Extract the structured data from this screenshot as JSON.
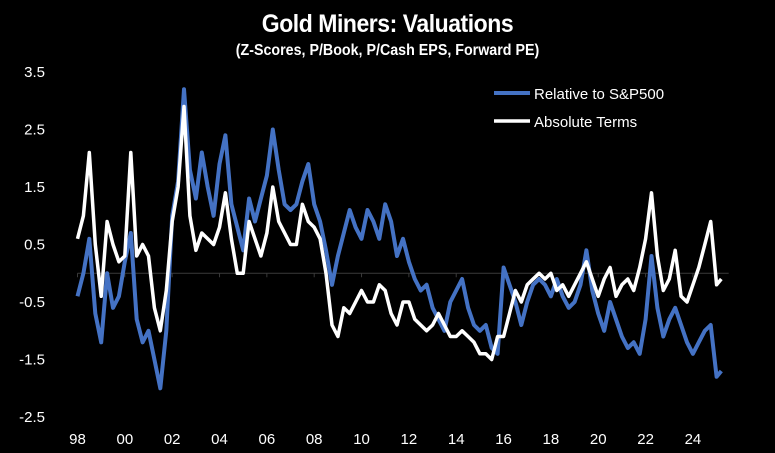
{
  "chart_data": {
    "type": "line",
    "title": "Gold Miners: Valuations",
    "subtitle": "(Z-Scores, P/Book, P/Cash EPS, Forward PE)",
    "xlabel": "",
    "ylabel": "",
    "ylim": [
      -2.5,
      3.5
    ],
    "xlim": [
      1998,
      2025.3
    ],
    "yticks": [
      "3.5",
      "2.5",
      "1.5",
      "0.5",
      "-0.5",
      "-1.5",
      "-2.5"
    ],
    "ytick_values": [
      3.5,
      2.5,
      1.5,
      0.5,
      -0.5,
      -1.5,
      -2.5
    ],
    "xticks": [
      "98",
      "00",
      "02",
      "04",
      "06",
      "08",
      "10",
      "12",
      "14",
      "16",
      "18",
      "20",
      "22",
      "24"
    ],
    "xtick_values": [
      1998,
      2000,
      2002,
      2004,
      2006,
      2008,
      2010,
      2012,
      2014,
      2016,
      2018,
      2020,
      2022,
      2024
    ],
    "zero_line": true,
    "grid": false,
    "legend_position": "top-right",
    "colors": {
      "relative": "#4472C4",
      "absolute": "#FFFFFF",
      "zero_line": "#3a3a3a"
    },
    "x": [
      1998.0,
      1998.25,
      1998.5,
      1998.75,
      1999.0,
      1999.25,
      1999.5,
      1999.75,
      2000.0,
      2000.25,
      2000.5,
      2000.75,
      2001.0,
      2001.25,
      2001.5,
      2001.75,
      2002.0,
      2002.25,
      2002.5,
      2002.75,
      2003.0,
      2003.25,
      2003.5,
      2003.75,
      2004.0,
      2004.25,
      2004.5,
      2004.75,
      2005.0,
      2005.25,
      2005.5,
      2005.75,
      2006.0,
      2006.25,
      2006.5,
      2006.75,
      2007.0,
      2007.25,
      2007.5,
      2007.75,
      2008.0,
      2008.25,
      2008.5,
      2008.75,
      2009.0,
      2009.25,
      2009.5,
      2009.75,
      2010.0,
      2010.25,
      2010.5,
      2010.75,
      2011.0,
      2011.25,
      2011.5,
      2011.75,
      2012.0,
      2012.25,
      2012.5,
      2012.75,
      2013.0,
      2013.25,
      2013.5,
      2013.75,
      2014.0,
      2014.25,
      2014.5,
      2014.75,
      2015.0,
      2015.25,
      2015.5,
      2015.75,
      2016.0,
      2016.25,
      2016.5,
      2016.75,
      2017.0,
      2017.25,
      2017.5,
      2017.75,
      2018.0,
      2018.25,
      2018.5,
      2018.75,
      2019.0,
      2019.25,
      2019.5,
      2019.75,
      2020.0,
      2020.25,
      2020.5,
      2020.75,
      2021.0,
      2021.25,
      2021.5,
      2021.75,
      2022.0,
      2022.25,
      2022.5,
      2022.75,
      2023.0,
      2023.25,
      2023.5,
      2023.75,
      2024.0,
      2024.25,
      2024.5,
      2024.75,
      2025.0,
      2025.2
    ],
    "series": [
      {
        "name": "Relative to S&P500",
        "values": [
          -0.4,
          0.0,
          0.6,
          -0.7,
          -1.2,
          0.0,
          -0.6,
          -0.4,
          0.2,
          0.7,
          -0.8,
          -1.2,
          -1.0,
          -1.5,
          -2.0,
          -1.0,
          1.0,
          1.6,
          3.2,
          1.8,
          1.3,
          2.1,
          1.5,
          1.0,
          1.9,
          2.4,
          1.2,
          0.8,
          0.4,
          1.3,
          0.9,
          1.3,
          1.7,
          2.5,
          1.8,
          1.2,
          1.1,
          1.2,
          1.6,
          1.9,
          1.2,
          0.9,
          0.4,
          -0.2,
          0.3,
          0.7,
          1.1,
          0.8,
          0.6,
          1.1,
          0.9,
          0.6,
          1.2,
          0.9,
          0.3,
          0.6,
          0.2,
          -0.1,
          -0.3,
          -0.2,
          -0.6,
          -0.8,
          -1.0,
          -0.5,
          -0.3,
          -0.1,
          -0.6,
          -0.9,
          -1.0,
          -0.9,
          -1.3,
          -1.4,
          0.1,
          -0.2,
          -0.5,
          -0.9,
          -0.5,
          -0.2,
          -0.1,
          -0.2,
          -0.4,
          -0.1,
          -0.4,
          -0.6,
          -0.5,
          -0.2,
          0.4,
          -0.3,
          -0.7,
          -1.0,
          -0.5,
          -0.8,
          -1.1,
          -1.3,
          -1.2,
          -1.4,
          -0.8,
          0.3,
          -0.6,
          -1.1,
          -0.8,
          -0.6,
          -0.9,
          -1.2,
          -1.4,
          -1.2,
          -1.0,
          -0.9,
          -1.8,
          -1.7
        ]
      },
      {
        "name": "Absolute Terms",
        "values": [
          0.6,
          1.0,
          2.1,
          0.5,
          -0.4,
          0.9,
          0.5,
          0.2,
          0.3,
          2.1,
          0.3,
          0.5,
          0.3,
          -0.6,
          -1.0,
          -0.3,
          0.9,
          1.5,
          2.9,
          1.0,
          0.4,
          0.7,
          0.6,
          0.5,
          0.8,
          1.4,
          0.6,
          0.0,
          0.0,
          0.9,
          0.6,
          0.3,
          0.7,
          1.5,
          0.9,
          0.7,
          0.5,
          0.5,
          1.2,
          0.9,
          0.8,
          0.6,
          0.0,
          -0.9,
          -1.1,
          -0.6,
          -0.7,
          -0.5,
          -0.3,
          -0.5,
          -0.5,
          -0.2,
          -0.3,
          -0.7,
          -0.9,
          -0.5,
          -0.5,
          -0.8,
          -0.9,
          -1.0,
          -0.9,
          -0.7,
          -0.9,
          -1.1,
          -1.1,
          -1.0,
          -1.1,
          -1.2,
          -1.4,
          -1.4,
          -1.5,
          -1.1,
          -1.1,
          -0.7,
          -0.3,
          -0.5,
          -0.2,
          -0.1,
          0.0,
          -0.1,
          0.0,
          -0.3,
          -0.2,
          -0.4,
          -0.2,
          0.0,
          0.2,
          -0.1,
          -0.4,
          -0.1,
          0.1,
          -0.4,
          -0.2,
          -0.1,
          -0.3,
          0.1,
          0.6,
          1.4,
          0.3,
          -0.3,
          -0.1,
          0.4,
          -0.4,
          -0.5,
          -0.2,
          0.1,
          0.5,
          0.9,
          -0.2,
          -0.1
        ]
      }
    ]
  }
}
